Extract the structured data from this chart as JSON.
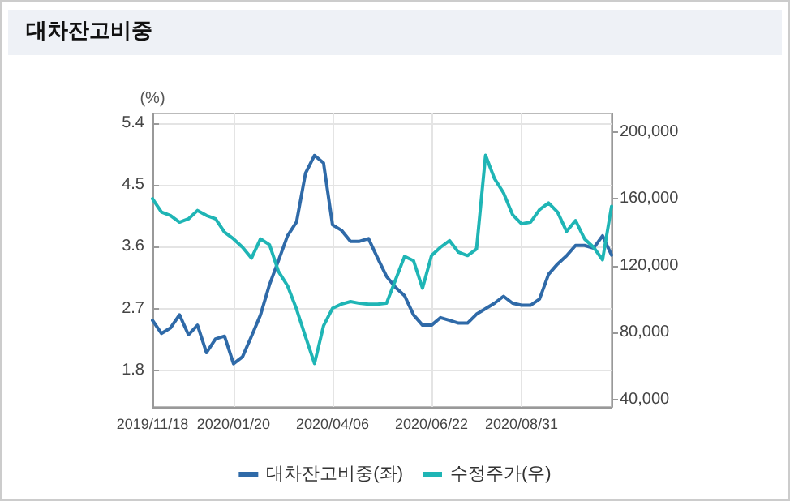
{
  "chart_data": {
    "type": "line",
    "title": "대차잔고비중",
    "ylabel": "(%)",
    "categories": [
      "2019/11/18",
      null,
      null,
      null,
      null,
      null,
      null,
      null,
      null,
      "2020/01/20",
      null,
      null,
      null,
      null,
      null,
      null,
      null,
      null,
      null,
      null,
      "2020/04/06",
      null,
      null,
      null,
      null,
      null,
      null,
      null,
      null,
      null,
      null,
      "2020/06/22",
      null,
      null,
      null,
      null,
      null,
      null,
      null,
      null,
      null,
      "2020/08/31",
      null,
      null,
      null,
      null,
      null,
      null,
      null,
      null,
      null,
      null
    ],
    "series": [
      {
        "name": "대차잔고비중(좌)",
        "color": "#2f6aa8",
        "values": [
          2.53,
          2.34,
          2.42,
          2.61,
          2.32,
          2.46,
          2.06,
          2.26,
          2.3,
          1.9,
          2.0,
          2.3,
          2.61,
          3.05,
          3.4,
          3.76,
          3.96,
          4.67,
          4.93,
          4.82,
          3.92,
          3.84,
          3.68,
          3.68,
          3.72,
          3.44,
          3.17,
          3.01,
          2.89,
          2.61,
          2.46,
          2.46,
          2.57,
          2.53,
          2.49,
          2.49,
          2.62,
          2.7,
          2.78,
          2.88,
          2.78,
          2.75,
          2.75,
          2.84,
          3.2,
          3.35,
          3.47,
          3.62,
          3.62,
          3.58,
          3.76,
          3.48
        ]
      },
      {
        "name": "수정주가(우)",
        "color": "#1fb5b5",
        "axis": "y2",
        "values": [
          160000,
          152000,
          150000,
          146000,
          148000,
          153000,
          150000,
          148000,
          140000,
          136000,
          131000,
          124500,
          136000,
          132500,
          116500,
          108000,
          94000,
          77500,
          61500,
          84000,
          94500,
          97000,
          98500,
          97500,
          97000,
          97000,
          97500,
          111500,
          125500,
          123000,
          106500,
          126000,
          131000,
          135000,
          128000,
          126000,
          130000,
          186000,
          172000,
          163500,
          150500,
          145000,
          146000,
          153500,
          157500,
          152000,
          140500,
          147000,
          136000,
          131000,
          123500,
          155500
        ]
      }
    ],
    "ylim": [
      1.27,
      5.54
    ],
    "yticks": [
      1.8,
      2.7,
      3.6,
      4.5,
      5.4
    ],
    "y2lim": [
      35500,
      211000
    ],
    "y2ticks": [
      {
        "value": 40000,
        "label": "40,000"
      },
      {
        "value": 80000,
        "label": "80,000"
      },
      {
        "value": 120000,
        "label": "120,000"
      },
      {
        "value": 160000,
        "label": "160,000"
      },
      {
        "value": 200000,
        "label": "200,000"
      }
    ],
    "grid": true,
    "legend": "bottom",
    "marker": "none",
    "line_style": "solid"
  }
}
